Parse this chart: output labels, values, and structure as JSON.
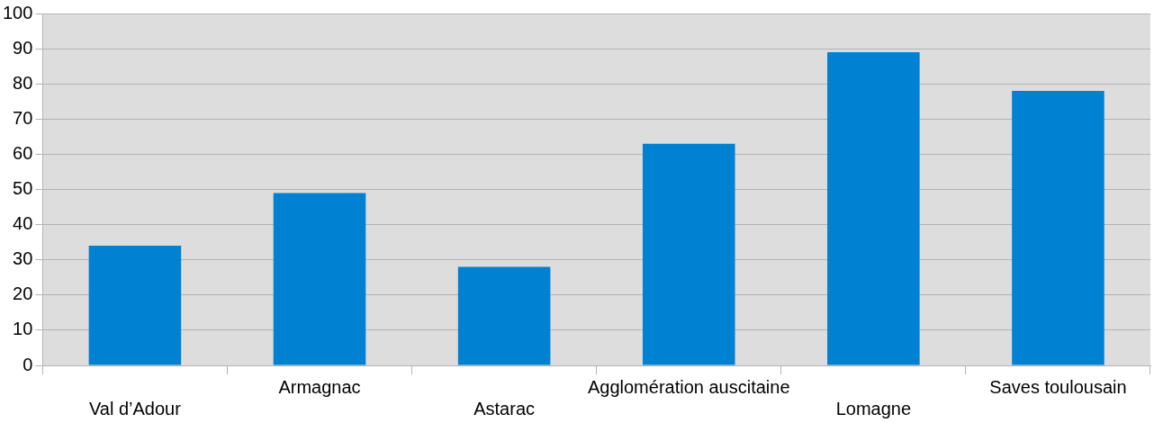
{
  "chart_data": {
    "type": "bar",
    "categories": [
      "Val d’Adour",
      "Armagnac",
      "Astarac",
      "Agglomération auscitaine",
      "Lomagne",
      "Saves toulousain"
    ],
    "values": [
      34,
      49,
      28,
      63,
      89,
      78
    ],
    "color": "#0081d1",
    "ylim": [
      0,
      100
    ],
    "yticks": [
      0,
      10,
      20,
      30,
      40,
      50,
      60,
      70,
      80,
      90,
      100
    ],
    "grid": "y",
    "legend": false
  }
}
